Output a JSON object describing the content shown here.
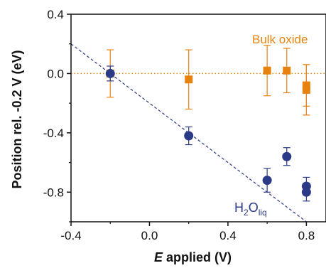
{
  "chart_data": {
    "type": "scatter",
    "title": "",
    "xlabel_italic": "E",
    "xlabel_rest": " applied (V)",
    "ylabel": "Position rel. -0.2 V (eV)",
    "xlim": [
      -0.4,
      0.9
    ],
    "ylim": [
      -1.0,
      0.4
    ],
    "xticks": [
      -0.4,
      0.0,
      0.4,
      0.8
    ],
    "xtick_labels": [
      "-0.4",
      "0.0",
      "0.4",
      "0.8"
    ],
    "yticks": [
      -0.8,
      -0.4,
      0.0,
      0.4
    ],
    "ytick_labels": [
      "-0.8",
      "-0.4",
      "0.0",
      "0.4"
    ],
    "grid": false,
    "series": [
      {
        "name": "Bulk oxide",
        "marker": "square",
        "color": "#e8820f",
        "points": [
          {
            "x": -0.2,
            "y": 0.0,
            "err": 0.16
          },
          {
            "x": 0.2,
            "y": -0.04,
            "err": 0.2
          },
          {
            "x": 0.6,
            "y": 0.02,
            "err": 0.17
          },
          {
            "x": 0.7,
            "y": 0.02,
            "err": 0.15
          },
          {
            "x": 0.8,
            "y": -0.08,
            "err": 0.14
          },
          {
            "x": 0.8,
            "y": -0.11,
            "err": 0.17
          }
        ]
      },
      {
        "name": "H2Oliq",
        "marker": "circle",
        "color": "#2b3a87",
        "points": [
          {
            "x": -0.2,
            "y": 0.0,
            "err": 0.05
          },
          {
            "x": 0.2,
            "y": -0.42,
            "err": 0.06
          },
          {
            "x": 0.6,
            "y": -0.72,
            "err": 0.08
          },
          {
            "x": 0.7,
            "y": -0.56,
            "err": 0.06
          },
          {
            "x": 0.8,
            "y": -0.76,
            "err": 0.06
          },
          {
            "x": 0.8,
            "y": -0.8,
            "err": 0.06
          }
        ]
      }
    ],
    "reference_lines": [
      {
        "type": "horizontal",
        "y": 0.0,
        "color": "#e8820f",
        "style": "dotted"
      },
      {
        "type": "line",
        "x1": -0.4,
        "y1": 0.2,
        "x2": 0.9,
        "y2": -1.1,
        "color": "#2b3a87",
        "style": "dashed"
      }
    ],
    "annotations": {
      "bulk_oxide": "Bulk oxide",
      "h2o_main": "H",
      "h2o_sub1": "2",
      "h2o_mid": "O",
      "h2o_sub2": "liq"
    }
  }
}
